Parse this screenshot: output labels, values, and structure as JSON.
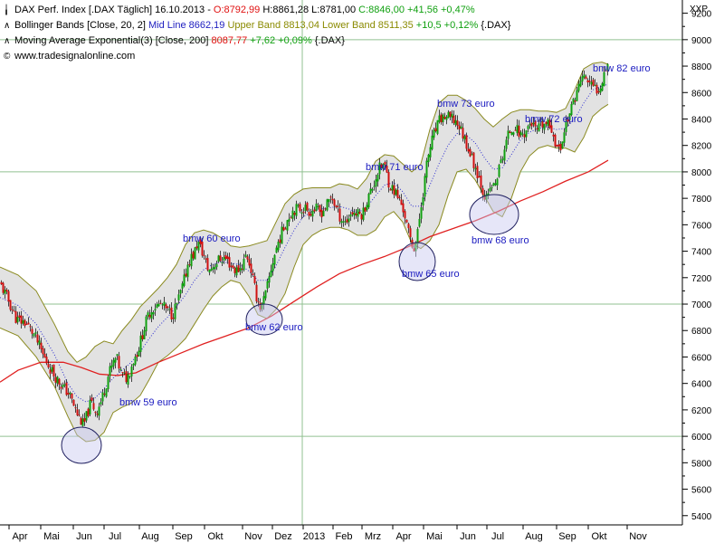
{
  "legend": {
    "line1": {
      "icon": "candle-icon",
      "name": "DAX Perf. Index [.DAX  Täglich]  16.10.2013 - ",
      "open": "O:8792,99",
      "high_low": " H:8861,28 L:8781,00 ",
      "close": "C:8846,00 +41,56 +0,47%"
    },
    "line2": {
      "icon": "line-icon",
      "name": "Bollinger Bands [Close, 20, 2] ",
      "mid": "Mid Line 8662,19 ",
      "bands": "Upper Band 8813,04 Lower Band 8511,35 ",
      "change": "+10,5 +0,12% ",
      "sym": "{.DAX}"
    },
    "line3": {
      "icon": "line-icon",
      "name": "Moving Average Exponential(3) [Close, 200] ",
      "value": "8087,77 ",
      "change": "+7,62 +0,09% ",
      "sym": "{.DAX}"
    },
    "line4": {
      "icon": "copyright-icon",
      "text": "www.tradesignalonline.com"
    }
  },
  "colors": {
    "ema": "#e02020",
    "band": "#8a8a20",
    "fill": "#e2e2e2",
    "mid": "#3030d0",
    "up": "#10a010",
    "down": "#d01010",
    "annot": "#1a1ac0",
    "grid": "#90c090"
  },
  "chart_data": {
    "type": "candlestick",
    "y_axis_unit": "XXP",
    "ylim": [
      5330,
      9300
    ],
    "y_ticks": [
      5400,
      5600,
      5800,
      6000,
      6200,
      6400,
      6600,
      6800,
      7000,
      7200,
      7400,
      7600,
      7800,
      8000,
      8200,
      8400,
      8600,
      8800,
      9000,
      9200
    ],
    "gridlines_y": [
      6000,
      7000,
      8000,
      9000
    ],
    "x_labels": [
      "Apr",
      "Mai",
      "Jun",
      "Jul",
      "Aug",
      "Sep",
      "Okt",
      "Nov",
      "Dez",
      "2013",
      "Feb",
      "Mrz",
      "Apr",
      "Mai",
      "Jun",
      "Jul",
      "Aug",
      "Sep",
      "Okt",
      "Nov"
    ],
    "x_label_pos": [
      22,
      57,
      93,
      127,
      166,
      203,
      238,
      280,
      313,
      347,
      380,
      412,
      446,
      480,
      517,
      550,
      590,
      627,
      662,
      705
    ],
    "price_path": [
      [
        0,
        7150
      ],
      [
        8,
        7040
      ],
      [
        18,
        6880
      ],
      [
        28,
        6860
      ],
      [
        38,
        6760
      ],
      [
        48,
        6600
      ],
      [
        58,
        6480
      ],
      [
        68,
        6380
      ],
      [
        76,
        6320
      ],
      [
        84,
        6180
      ],
      [
        92,
        6080
      ],
      [
        100,
        6260
      ],
      [
        106,
        6180
      ],
      [
        112,
        6280
      ],
      [
        120,
        6480
      ],
      [
        128,
        6600
      ],
      [
        134,
        6460
      ],
      [
        140,
        6440
      ],
      [
        146,
        6560
      ],
      [
        152,
        6650
      ],
      [
        158,
        6800
      ],
      [
        164,
        6930
      ],
      [
        170,
        6980
      ],
      [
        178,
        7000
      ],
      [
        184,
        6950
      ],
      [
        190,
        6920
      ],
      [
        196,
        7020
      ],
      [
        202,
        7150
      ],
      [
        208,
        7330
      ],
      [
        214,
        7380
      ],
      [
        218,
        7470
      ],
      [
        224,
        7380
      ],
      [
        230,
        7250
      ],
      [
        236,
        7300
      ],
      [
        242,
        7340
      ],
      [
        248,
        7350
      ],
      [
        254,
        7300
      ],
      [
        260,
        7250
      ],
      [
        266,
        7280
      ],
      [
        272,
        7380
      ],
      [
        277,
        7260
      ],
      [
        282,
        7080
      ],
      [
        288,
        6960
      ],
      [
        294,
        7100
      ],
      [
        300,
        7300
      ],
      [
        306,
        7450
      ],
      [
        312,
        7560
      ],
      [
        318,
        7660
      ],
      [
        324,
        7720
      ],
      [
        330,
        7720
      ],
      [
        336,
        7730
      ],
      [
        342,
        7700
      ],
      [
        348,
        7720
      ],
      [
        354,
        7690
      ],
      [
        360,
        7740
      ],
      [
        366,
        7820
      ],
      [
        370,
        7740
      ],
      [
        376,
        7650
      ],
      [
        382,
        7620
      ],
      [
        388,
        7700
      ],
      [
        394,
        7680
      ],
      [
        400,
        7680
      ],
      [
        406,
        7800
      ],
      [
        412,
        7900
      ],
      [
        418,
        8020
      ],
      [
        424,
        8060
      ],
      [
        430,
        7900
      ],
      [
        436,
        7850
      ],
      [
        442,
        7770
      ],
      [
        446,
        7700
      ],
      [
        450,
        7560
      ],
      [
        456,
        7420
      ],
      [
        460,
        7480
      ],
      [
        464,
        7700
      ],
      [
        468,
        7900
      ],
      [
        472,
        8100
      ],
      [
        476,
        8220
      ],
      [
        480,
        8300
      ],
      [
        486,
        8400
      ],
      [
        492,
        8420
      ],
      [
        498,
        8400
      ],
      [
        504,
        8380
      ],
      [
        510,
        8300
      ],
      [
        516,
        8200
      ],
      [
        522,
        8080
      ],
      [
        528,
        7980
      ],
      [
        534,
        7840
      ],
      [
        538,
        7780
      ],
      [
        542,
        7900
      ],
      [
        546,
        7880
      ],
      [
        550,
        8000
      ],
      [
        556,
        8150
      ],
      [
        562,
        8300
      ],
      [
        568,
        8350
      ],
      [
        574,
        8280
      ],
      [
        580,
        8300
      ],
      [
        586,
        8380
      ],
      [
        592,
        8300
      ],
      [
        598,
        8350
      ],
      [
        604,
        8360
      ],
      [
        610,
        8320
      ],
      [
        614,
        8200
      ],
      [
        618,
        8150
      ],
      [
        622,
        8280
      ],
      [
        626,
        8400
      ],
      [
        630,
        8450
      ],
      [
        634,
        8560
      ],
      [
        638,
        8620
      ],
      [
        642,
        8720
      ],
      [
        648,
        8700
      ],
      [
        654,
        8640
      ],
      [
        660,
        8620
      ],
      [
        664,
        8680
      ],
      [
        668,
        8780
      ],
      [
        672,
        8846
      ]
    ],
    "bands": {
      "upper": [
        [
          0,
          7280
        ],
        [
          20,
          7220
        ],
        [
          40,
          7100
        ],
        [
          60,
          6850
        ],
        [
          75,
          6640
        ],
        [
          85,
          6560
        ],
        [
          95,
          6600
        ],
        [
          105,
          6680
        ],
        [
          115,
          6720
        ],
        [
          125,
          6700
        ],
        [
          135,
          6800
        ],
        [
          145,
          6880
        ],
        [
          155,
          6980
        ],
        [
          165,
          7050
        ],
        [
          175,
          7120
        ],
        [
          185,
          7200
        ],
        [
          195,
          7300
        ],
        [
          205,
          7450
        ],
        [
          215,
          7540
        ],
        [
          225,
          7560
        ],
        [
          235,
          7540
        ],
        [
          245,
          7500
        ],
        [
          255,
          7440
        ],
        [
          265,
          7430
        ],
        [
          275,
          7440
        ],
        [
          285,
          7460
        ],
        [
          295,
          7480
        ],
        [
          305,
          7620
        ],
        [
          315,
          7760
        ],
        [
          325,
          7830
        ],
        [
          335,
          7870
        ],
        [
          345,
          7880
        ],
        [
          355,
          7880
        ],
        [
          365,
          7880
        ],
        [
          375,
          7910
        ],
        [
          385,
          7900
        ],
        [
          395,
          7870
        ],
        [
          405,
          7950
        ],
        [
          415,
          8080
        ],
        [
          425,
          8130
        ],
        [
          435,
          8120
        ],
        [
          445,
          8060
        ],
        [
          455,
          8000
        ],
        [
          465,
          8060
        ],
        [
          475,
          8320
        ],
        [
          485,
          8520
        ],
        [
          495,
          8580
        ],
        [
          505,
          8580
        ],
        [
          515,
          8540
        ],
        [
          525,
          8480
        ],
        [
          535,
          8400
        ],
        [
          545,
          8340
        ],
        [
          555,
          8400
        ],
        [
          565,
          8450
        ],
        [
          575,
          8470
        ],
        [
          585,
          8470
        ],
        [
          595,
          8460
        ],
        [
          605,
          8460
        ],
        [
          615,
          8450
        ],
        [
          625,
          8480
        ],
        [
          635,
          8620
        ],
        [
          645,
          8780
        ],
        [
          655,
          8820
        ],
        [
          665,
          8830
        ],
        [
          672,
          8813
        ]
      ],
      "mid": [
        [
          0,
          7050
        ],
        [
          20,
          6990
        ],
        [
          40,
          6850
        ],
        [
          60,
          6620
        ],
        [
          75,
          6400
        ],
        [
          85,
          6300
        ],
        [
          95,
          6260
        ],
        [
          105,
          6290
        ],
        [
          115,
          6360
        ],
        [
          125,
          6440
        ],
        [
          135,
          6500
        ],
        [
          145,
          6560
        ],
        [
          155,
          6640
        ],
        [
          165,
          6740
        ],
        [
          175,
          6830
        ],
        [
          185,
          6900
        ],
        [
          195,
          6980
        ],
        [
          205,
          7070
        ],
        [
          215,
          7180
        ],
        [
          225,
          7260
        ],
        [
          235,
          7300
        ],
        [
          245,
          7320
        ],
        [
          255,
          7310
        ],
        [
          265,
          7300
        ],
        [
          275,
          7250
        ],
        [
          285,
          7180
        ],
        [
          295,
          7180
        ],
        [
          305,
          7290
        ],
        [
          315,
          7430
        ],
        [
          325,
          7560
        ],
        [
          335,
          7660
        ],
        [
          345,
          7700
        ],
        [
          355,
          7720
        ],
        [
          365,
          7730
        ],
        [
          375,
          7740
        ],
        [
          385,
          7720
        ],
        [
          395,
          7690
        ],
        [
          405,
          7730
        ],
        [
          415,
          7820
        ],
        [
          425,
          7900
        ],
        [
          435,
          7920
        ],
        [
          445,
          7850
        ],
        [
          455,
          7740
        ],
        [
          465,
          7740
        ],
        [
          475,
          7900
        ],
        [
          485,
          8060
        ],
        [
          495,
          8200
        ],
        [
          505,
          8290
        ],
        [
          515,
          8280
        ],
        [
          525,
          8220
        ],
        [
          535,
          8110
        ],
        [
          545,
          8020
        ],
        [
          555,
          8030
        ],
        [
          565,
          8130
        ],
        [
          575,
          8240
        ],
        [
          585,
          8300
        ],
        [
          595,
          8330
        ],
        [
          605,
          8340
        ],
        [
          615,
          8320
        ],
        [
          625,
          8330
        ],
        [
          635,
          8400
        ],
        [
          645,
          8520
        ],
        [
          655,
          8620
        ],
        [
          665,
          8650
        ],
        [
          672,
          8662
        ]
      ],
      "lower": [
        [
          0,
          6820
        ],
        [
          20,
          6760
        ],
        [
          40,
          6600
        ],
        [
          60,
          6380
        ],
        [
          75,
          6150
        ],
        [
          85,
          6010
        ],
        [
          95,
          5960
        ],
        [
          105,
          5970
        ],
        [
          115,
          6030
        ],
        [
          125,
          6180
        ],
        [
          135,
          6220
        ],
        [
          145,
          6250
        ],
        [
          155,
          6310
        ],
        [
          165,
          6430
        ],
        [
          175,
          6560
        ],
        [
          185,
          6610
        ],
        [
          195,
          6670
        ],
        [
          205,
          6740
        ],
        [
          215,
          6850
        ],
        [
          225,
          6960
        ],
        [
          235,
          7060
        ],
        [
          245,
          7130
        ],
        [
          255,
          7180
        ],
        [
          265,
          7160
        ],
        [
          275,
          7060
        ],
        [
          285,
          6920
        ],
        [
          295,
          6890
        ],
        [
          305,
          6960
        ],
        [
          315,
          7080
        ],
        [
          325,
          7280
        ],
        [
          335,
          7450
        ],
        [
          345,
          7520
        ],
        [
          355,
          7560
        ],
        [
          365,
          7580
        ],
        [
          375,
          7580
        ],
        [
          385,
          7560
        ],
        [
          395,
          7520
        ],
        [
          405,
          7520
        ],
        [
          415,
          7560
        ],
        [
          425,
          7660
        ],
        [
          435,
          7700
        ],
        [
          445,
          7620
        ],
        [
          455,
          7460
        ],
        [
          465,
          7420
        ],
        [
          475,
          7480
        ],
        [
          485,
          7600
        ],
        [
          495,
          7820
        ],
        [
          505,
          8000
        ],
        [
          515,
          8020
        ],
        [
          525,
          7940
        ],
        [
          535,
          7820
        ],
        [
          545,
          7700
        ],
        [
          555,
          7660
        ],
        [
          565,
          7800
        ],
        [
          575,
          8000
        ],
        [
          585,
          8120
        ],
        [
          595,
          8180
        ],
        [
          605,
          8200
        ],
        [
          615,
          8180
        ],
        [
          625,
          8180
        ],
        [
          635,
          8150
        ],
        [
          645,
          8260
        ],
        [
          655,
          8420
        ],
        [
          665,
          8480
        ],
        [
          672,
          8511
        ]
      ]
    },
    "ema200": [
      [
        0,
        6410
      ],
      [
        20,
        6500
      ],
      [
        45,
        6560
      ],
      [
        70,
        6560
      ],
      [
        90,
        6520
      ],
      [
        110,
        6470
      ],
      [
        130,
        6460
      ],
      [
        150,
        6480
      ],
      [
        175,
        6560
      ],
      [
        200,
        6630
      ],
      [
        225,
        6700
      ],
      [
        250,
        6760
      ],
      [
        275,
        6820
      ],
      [
        300,
        6910
      ],
      [
        325,
        7020
      ],
      [
        350,
        7130
      ],
      [
        375,
        7230
      ],
      [
        400,
        7300
      ],
      [
        425,
        7360
      ],
      [
        450,
        7430
      ],
      [
        475,
        7510
      ],
      [
        500,
        7570
      ],
      [
        525,
        7630
      ],
      [
        550,
        7700
      ],
      [
        575,
        7780
      ],
      [
        600,
        7850
      ],
      [
        625,
        7930
      ],
      [
        650,
        8000
      ],
      [
        672,
        8088
      ]
    ],
    "annotations": [
      {
        "text": "bmw 59 euro"
      },
      {
        "text": "bmw 60 euro"
      },
      {
        "text": "bmw 62 euro"
      },
      {
        "text": "bmw 71 euro"
      },
      {
        "text": "bmw 65 euro"
      },
      {
        "text": "bmw 73 euro"
      },
      {
        "text": "bmw 68 euro"
      },
      {
        "text": "bmw 72 euro"
      },
      {
        "text": "bmw 82 euro"
      }
    ]
  }
}
